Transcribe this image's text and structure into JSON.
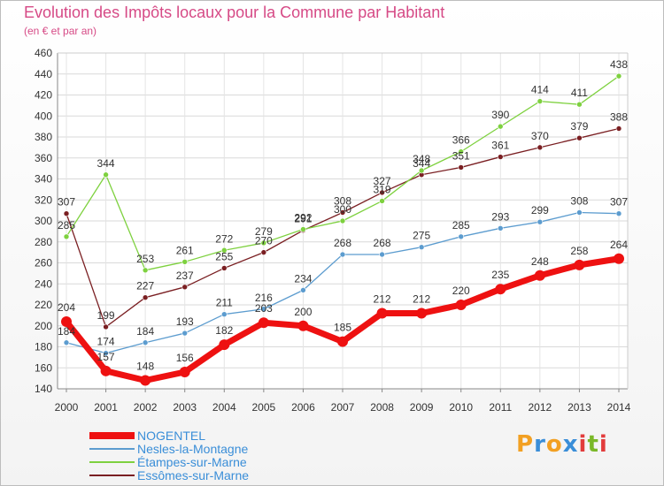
{
  "header": {
    "title": "Evolution des Impôts locaux pour la Commune par Habitant",
    "subtitle": "(en € et par an)"
  },
  "logo": {
    "letters": [
      "P",
      "r",
      "o",
      "x",
      "i",
      "t",
      "i"
    ],
    "colors": [
      "#f2a023",
      "#3a8ed8",
      "#f2a023",
      "#3a8ed8",
      "#e23c3c",
      "#7ab828",
      "#e23c3c"
    ]
  },
  "chart_data": {
    "type": "line",
    "title": "Evolution des Impôts locaux pour la Commune par Habitant",
    "subtitle": "(en € et par an)",
    "xlabel": "",
    "ylabel": "",
    "x": [
      "2000",
      "2001",
      "2002",
      "2003",
      "2004",
      "2005",
      "2006",
      "2007",
      "2008",
      "2009",
      "2010",
      "2011",
      "2012",
      "2013",
      "2014"
    ],
    "ylim": [
      140,
      460
    ],
    "yticks": [
      "140",
      "160",
      "180",
      "200",
      "220",
      "240",
      "260",
      "280",
      "300",
      "320",
      "340",
      "360",
      "380",
      "400",
      "420",
      "440",
      "460"
    ],
    "grid": true,
    "legend_position": "bottom-left",
    "series": [
      {
        "name": "NOGENTEL",
        "color": "#ee1111",
        "values": [
          204,
          157,
          148,
          156,
          182,
          203,
          200,
          185,
          212,
          212,
          220,
          235,
          248,
          258,
          264
        ],
        "labels": [
          "204",
          "157",
          "148",
          "156",
          "182",
          "203",
          "200",
          "185",
          "212",
          "212",
          "220",
          "235",
          "248",
          "258",
          "264"
        ]
      },
      {
        "name": "Nesles-la-Montagne",
        "color": "#5c9ccf",
        "values": [
          184,
          174,
          184,
          193,
          211,
          216,
          234,
          268,
          268,
          275,
          285,
          293,
          299,
          308,
          307
        ],
        "labels": [
          "184",
          "174",
          "184",
          "193",
          "211",
          "216",
          "234",
          "268",
          "268",
          "275",
          "285",
          "293",
          "299",
          "308",
          "307"
        ]
      },
      {
        "name": "Étampes-sur-Marne",
        "color": "#7ed13f",
        "values": [
          285,
          344,
          253,
          261,
          272,
          279,
          292,
          300,
          319,
          348,
          366,
          390,
          414,
          411,
          438
        ],
        "labels": [
          "285",
          "344",
          "253",
          "261",
          "272",
          "279",
          "292",
          "300",
          "319",
          "348",
          "366",
          "390",
          "414",
          "411",
          "438"
        ]
      },
      {
        "name": "Essômes-sur-Marne",
        "color": "#7a1f22",
        "values": [
          307,
          199,
          227,
          237,
          255,
          270,
          291,
          308,
          327,
          344,
          351,
          361,
          370,
          379,
          388
        ],
        "labels": [
          "307",
          "199",
          "227",
          "237",
          "255",
          "270",
          "291",
          "308",
          "327",
          "344",
          "351",
          "361",
          "370",
          "379",
          "388"
        ]
      }
    ]
  }
}
